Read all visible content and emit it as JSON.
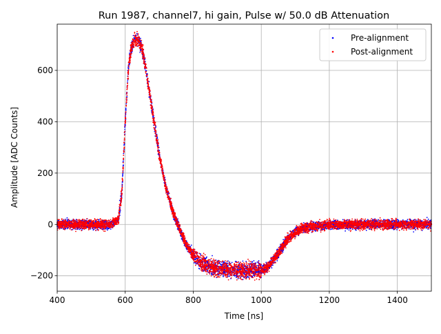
{
  "chart_data": {
    "type": "scatter",
    "title": "Run 1987, channel7, hi gain, Pulse w/ 50.0 dB Attenuation",
    "xlabel": "Time [ns]",
    "ylabel": "Amplitude [ADC Counts]",
    "xlim": [
      400,
      1500
    ],
    "ylim": [
      -260,
      780
    ],
    "x_ticks": [
      400,
      600,
      800,
      1000,
      1200,
      1400
    ],
    "y_ticks": [
      -200,
      0,
      200,
      400,
      600
    ],
    "grid": true,
    "legend_position": "top-right",
    "series": [
      {
        "name": "Pre-alignment",
        "color": "#0000ff",
        "marker": "point",
        "x": [
          400,
          500,
          560,
          580,
          590,
          600,
          610,
          620,
          630,
          635,
          640,
          650,
          660,
          680,
          700,
          720,
          740,
          760,
          780,
          800,
          820,
          840,
          860,
          900,
          950,
          1000,
          1020,
          1040,
          1060,
          1080,
          1100,
          1120,
          1150,
          1200,
          1300,
          1400,
          1500
        ],
        "y": [
          0,
          0,
          0,
          20,
          120,
          400,
          620,
          700,
          720,
          722,
          715,
          680,
          610,
          440,
          270,
          140,
          50,
          -20,
          -80,
          -120,
          -145,
          -160,
          -170,
          -175,
          -180,
          -180,
          -165,
          -130,
          -90,
          -55,
          -30,
          -15,
          -8,
          -2,
          0,
          0,
          0
        ]
      },
      {
        "name": "Post-alignment",
        "color": "#ff0000",
        "marker": "point",
        "x": [
          400,
          500,
          560,
          580,
          590,
          600,
          610,
          620,
          630,
          635,
          640,
          650,
          660,
          680,
          700,
          720,
          740,
          760,
          780,
          800,
          820,
          840,
          860,
          900,
          950,
          1000,
          1020,
          1040,
          1060,
          1080,
          1100,
          1120,
          1150,
          1200,
          1300,
          1400,
          1500
        ],
        "y": [
          0,
          0,
          0,
          20,
          120,
          400,
          620,
          700,
          720,
          722,
          715,
          680,
          610,
          440,
          270,
          140,
          50,
          -20,
          -80,
          -120,
          -145,
          -160,
          -170,
          -175,
          -180,
          -180,
          -165,
          -130,
          -90,
          -55,
          -30,
          -15,
          -8,
          -2,
          0,
          0,
          0
        ]
      }
    ]
  }
}
